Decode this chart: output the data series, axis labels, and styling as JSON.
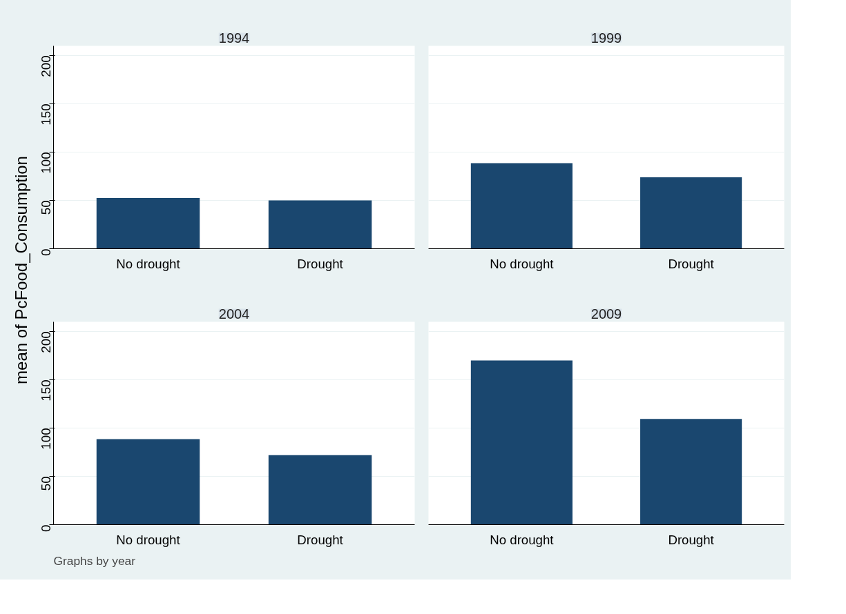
{
  "chart_data": [
    {
      "type": "bar",
      "title": "1994",
      "ylabel": "mean of PcFood_Consumption",
      "categories": [
        "No drought",
        "Drought"
      ],
      "values": [
        52.5,
        50
      ],
      "color": "#1a476f",
      "ylim": [
        0,
        210
      ],
      "yticks": [
        0,
        50,
        100,
        150,
        200
      ],
      "grid": "y"
    },
    {
      "type": "bar",
      "title": "1999",
      "categories": [
        "No drought",
        "Drought"
      ],
      "values": [
        88.5,
        74
      ],
      "color": "#1a476f",
      "ylim": [
        0,
        210
      ],
      "yticks": [
        0,
        50,
        100,
        150,
        200
      ],
      "grid": "y",
      "tick_labels": "x"
    },
    {
      "type": "bar",
      "title": "2004",
      "categories": [
        "No drought",
        "Drought"
      ],
      "values": [
        88.5,
        72
      ],
      "color": "#1a476f",
      "ylim": [
        0,
        210
      ],
      "yticks": [
        0,
        50,
        100,
        150,
        200
      ],
      "grid": "y",
      "annotations": [
        "Graphs by year"
      ]
    },
    {
      "type": "bar",
      "title": "2009",
      "categories": [
        "No drought",
        "Drought"
      ],
      "values": [
        170,
        109.5
      ],
      "color": "#1a476f",
      "ylim": [
        0,
        210
      ],
      "yticks": [
        0,
        50,
        100,
        150,
        200
      ],
      "grid": "y",
      "tick_labels": "x"
    }
  ]
}
